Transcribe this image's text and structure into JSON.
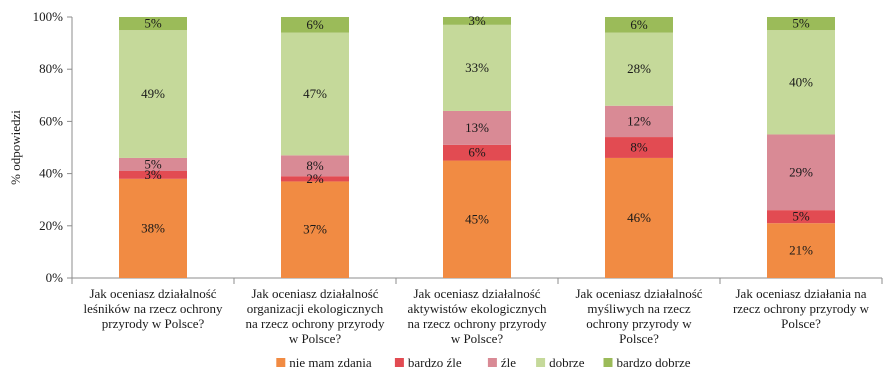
{
  "chart_data": {
    "type": "bar",
    "stacked": true,
    "ylabel": "% odpowiedzi",
    "ylim": [
      0,
      100
    ],
    "yticks": [
      "0%",
      "20%",
      "40%",
      "60%",
      "80%",
      "100%"
    ],
    "ytick_values": [
      0,
      20,
      40,
      60,
      80,
      100
    ],
    "grid": false,
    "legend_position": "bottom",
    "categories": [
      [
        "Jak oceniasz działalność",
        "leśników na rzecz ochrony",
        "przyrody w Polsce?"
      ],
      [
        "Jak oceniasz działalność",
        "organizacji ekologicznych",
        "na rzecz ochrony przyrody",
        "w Polsce?"
      ],
      [
        "Jak oceniasz działalność",
        "aktywistów ekologicznych",
        "na rzecz ochrony przyrody",
        "w Polsce?"
      ],
      [
        "Jak oceniasz działalność",
        "myśliwych na rzecz",
        "ochrony przyrody w",
        "Polsce?"
      ],
      [
        "Jak oceniasz działania na",
        "rzecz ochrony przyrody w",
        "Polsce?"
      ]
    ],
    "series": [
      {
        "name": "nie mam zdania",
        "color": "#F18B43",
        "values": [
          38,
          37,
          45,
          46,
          21
        ],
        "labels": [
          "38%",
          "37%",
          "45%",
          "46%",
          "21%"
        ]
      },
      {
        "name": "bardzo źle",
        "color": "#E24B52",
        "values": [
          3,
          2,
          6,
          8,
          5
        ],
        "labels": [
          "3%",
          "2%",
          "6%",
          "8%",
          "5%"
        ]
      },
      {
        "name": "źle",
        "color": "#D98A95",
        "values": [
          5,
          8,
          13,
          12,
          29
        ],
        "labels": [
          "5%",
          "8%",
          "13%",
          "12%",
          "29%"
        ]
      },
      {
        "name": "dobrze",
        "color": "#C5D99A",
        "values": [
          49,
          47,
          33,
          28,
          40
        ],
        "labels": [
          "49%",
          "47%",
          "33%",
          "28%",
          "40%"
        ]
      },
      {
        "name": "bardzo dobrze",
        "color": "#9BBB59",
        "values": [
          5,
          6,
          3,
          6,
          5
        ],
        "labels": [
          "5%",
          "6%",
          "3%",
          "6%",
          "5%"
        ]
      }
    ]
  }
}
